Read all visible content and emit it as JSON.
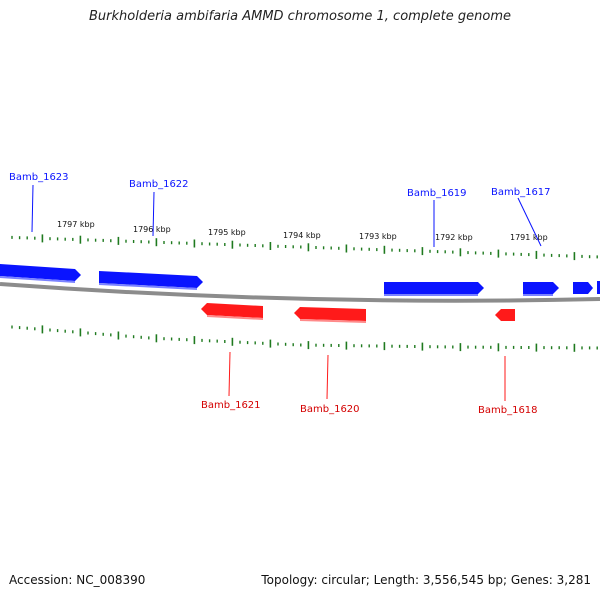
{
  "title": "Burkholderia ambifaria AMMD chromosome 1, complete genome",
  "footer": {
    "accession": "Accession: NC_008390",
    "summary": "Topology: circular; Length: 3,556,545 bp; Genes: 3,281"
  },
  "colors": {
    "forward": "#0a14ff",
    "reverse": "#ff1a1a",
    "tick": "#1f7a1f",
    "backbone": "#8c8c8c"
  },
  "scale_labels": [
    "1797 kbp",
    "1796 kbp",
    "1795 kbp",
    "1794 kbp",
    "1793 kbp",
    "1792 kbp",
    "1791 kbp"
  ],
  "genes": [
    {
      "label": "Bamb_1623",
      "strand": "forward"
    },
    {
      "label": "Bamb_1622",
      "strand": "forward"
    },
    {
      "label": "Bamb_1621",
      "strand": "reverse"
    },
    {
      "label": "Bamb_1620",
      "strand": "reverse"
    },
    {
      "label": "Bamb_1619",
      "strand": "forward"
    },
    {
      "label": "Bamb_1618",
      "strand": "reverse"
    },
    {
      "label": "Bamb_1617",
      "strand": "forward"
    }
  ]
}
